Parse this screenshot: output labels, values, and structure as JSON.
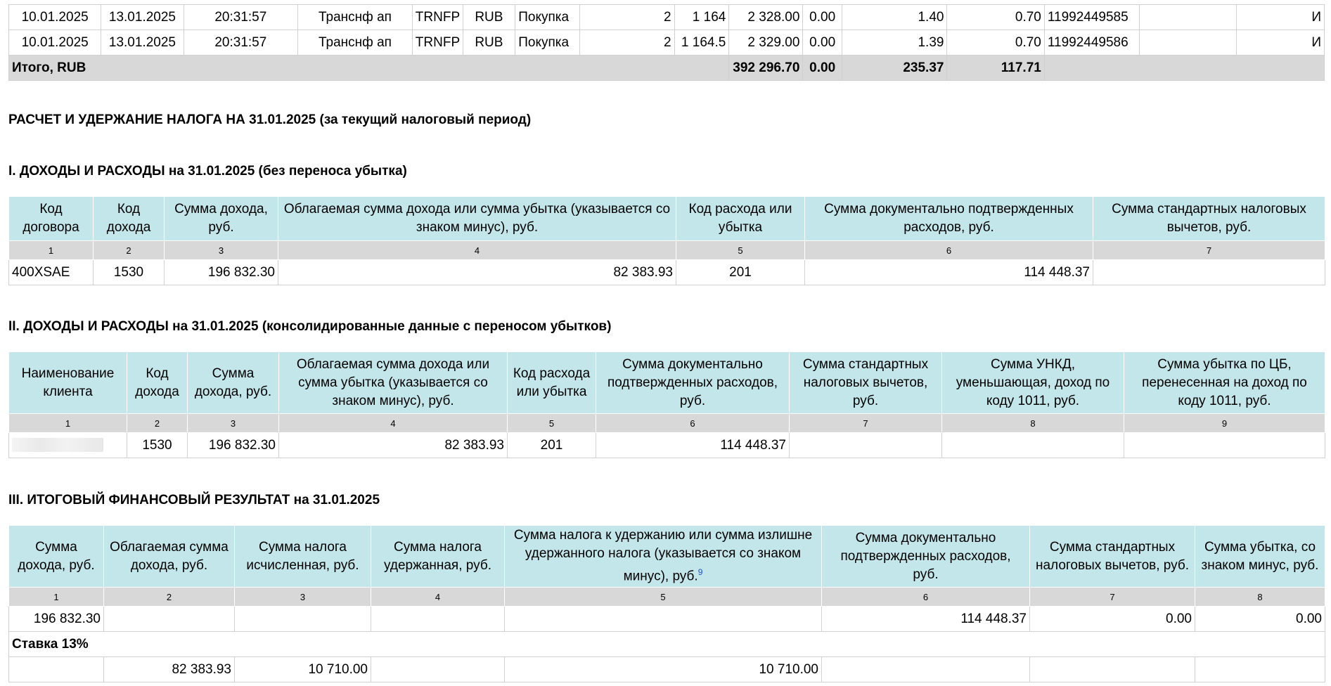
{
  "trades": {
    "rows": [
      [
        "10.01.2025",
        "13.01.2025",
        "20:31:57",
        "Транснф ап",
        "TRNFP",
        "RUB",
        "Покупка",
        "2",
        "1 164",
        "2 328.00",
        "0.00",
        "1.40",
        "0.70",
        "11992449585",
        "",
        "И"
      ],
      [
        "10.01.2025",
        "13.01.2025",
        "20:31:57",
        "Транснф ап",
        "TRNFP",
        "RUB",
        "Покупка",
        "2",
        "1 164.5",
        "2 329.00",
        "0.00",
        "1.39",
        "0.70",
        "11992449586",
        "",
        "И"
      ]
    ],
    "total": {
      "label": "Итого, RUB",
      "sum": "392 296.70",
      "nkd": "0.00",
      "fee1": "235.37",
      "fee2": "117.71"
    }
  },
  "main_heading": "РАСЧЕТ И УДЕРЖАНИЕ НАЛОГА НА 31.01.2025 (за текущий налоговый период)",
  "section1": {
    "title": "I. ДОХОДЫ И РАСХОДЫ на 31.01.2025 (без переноса убытка)",
    "headers": [
      "Код договора",
      "Код дохода",
      "Сумма дохода, руб.",
      "Облагаемая сумма дохода или сумма убытка (указывается со знаком минус), руб.",
      "Код расхода или убытка",
      "Сумма документально подтвержденных расходов, руб.",
      "Сумма стандартных налоговых вычетов, руб."
    ],
    "numbers": [
      "1",
      "2",
      "3",
      "4",
      "5",
      "6",
      "7"
    ],
    "row": [
      "400XSAE",
      "1530",
      "196 832.30",
      "82 383.93",
      "201",
      "114 448.37",
      ""
    ]
  },
  "section2": {
    "title": "II. ДОХОДЫ И РАСХОДЫ на 31.01.2025 (консолидированные данные с переносом убытков)",
    "headers": [
      "Наименование клиента",
      "Код дохода",
      "Сумма дохода, руб.",
      "Облагаемая сумма дохода или сумма убытка (указывается со знаком минус), руб.",
      "Код расхода или убытка",
      "Сумма документально подтвержденных расходов, руб.",
      "Сумма стандартных налоговых вычетов, руб.",
      "Сумма УНКД, уменьшающая, доход по коду 1011, руб.",
      "Сумма убытка по ЦБ, перенесенная на доход по коду 1011, руб."
    ],
    "numbers": [
      "1",
      "2",
      "3",
      "4",
      "5",
      "6",
      "7",
      "8",
      "9"
    ],
    "row": [
      "",
      "1530",
      "196 832.30",
      "82 383.93",
      "201",
      "114 448.37",
      "",
      "",
      ""
    ]
  },
  "section3": {
    "title": "III. ИТОГОВЫЙ ФИНАНСОВЫЙ РЕЗУЛЬТАТ на 31.01.2025",
    "headers": [
      "Сумма дохода, руб.",
      "Облагаемая сумма дохода, руб.",
      "Сумма налога исчисленная, руб.",
      "Сумма налога удержанная, руб.",
      "Сумма налога к удержанию или сумма излишне удержанного налога (указывается со знаком минус), руб.",
      "Сумма документально подтвержденных расходов, руб.",
      "Сумма стандартных налоговых вычетов, руб.",
      "Сумма убытка, со знаком минус, руб."
    ],
    "footnote": "9",
    "numbers": [
      "1",
      "2",
      "3",
      "4",
      "5",
      "6",
      "7",
      "8"
    ],
    "row1": [
      "196 832.30",
      "",
      "",
      "",
      "",
      "114 448.37",
      "0.00",
      "0.00"
    ],
    "rate_label": "Ставка 13%",
    "row2": [
      "",
      "82 383.93",
      "10 710.00",
      "",
      "10 710.00",
      "",
      "",
      ""
    ]
  }
}
